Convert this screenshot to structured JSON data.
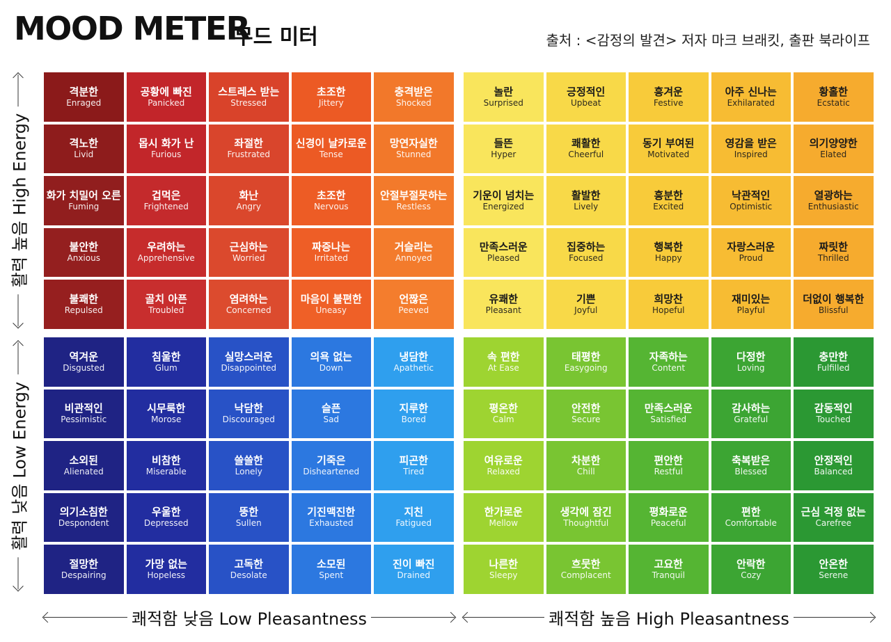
{
  "header": {
    "title": "MOOD METER",
    "subtitle": "무드 미터",
    "source": "출처 : <감정의 발견> 저자 마크 브래킷, 출판 북라이프"
  },
  "axes": {
    "high_energy": "활력 높음 High Energy",
    "low_energy": "활력 낮음 Low Energy",
    "low_pleasantness": "쾌적함 낮음 Low Pleasantness",
    "high_pleasantness": "쾌적함 높음 High Pleasantness"
  },
  "colors": {
    "red": [
      [
        "#8b1a1a",
        "#c2252a",
        "#d9432a",
        "#ec5a24",
        "#f2782a"
      ],
      [
        "#8e1c1c",
        "#c2262a",
        "#d9452c",
        "#ec5a24",
        "#f2782a"
      ],
      [
        "#911e1e",
        "#c42a2c",
        "#da472c",
        "#ed5c25",
        "#f37a2b"
      ],
      [
        "#941f1f",
        "#c62c2c",
        "#db492d",
        "#ee5e26",
        "#f37b2c"
      ],
      [
        "#961f1f",
        "#c82e2e",
        "#dc4b2e",
        "#ef6027",
        "#f47d2d"
      ]
    ],
    "yellow": [
      [
        "#f9e55c",
        "#f8d948",
        "#f8cb3a",
        "#f7bc33",
        "#f6ab2e"
      ],
      [
        "#f9e55c",
        "#f8d948",
        "#f8cb3a",
        "#f7bc33",
        "#f6ab2e"
      ],
      [
        "#f9e55c",
        "#f8d948",
        "#f8cb3a",
        "#f7bc33",
        "#f6ab2e"
      ],
      [
        "#f9e55c",
        "#f8d948",
        "#f8cb3a",
        "#f7bc33",
        "#f6ab2e"
      ],
      [
        "#f9e55c",
        "#f8d948",
        "#f8cb3a",
        "#f7bc33",
        "#f6ab2e"
      ]
    ],
    "blue": [
      [
        "#1f2384",
        "#222da0",
        "#2852c6",
        "#2c78e0",
        "#2f9fee"
      ],
      [
        "#1f2384",
        "#222da0",
        "#2852c6",
        "#2c78e0",
        "#2f9fee"
      ],
      [
        "#1f2384",
        "#222da0",
        "#2852c6",
        "#2c78e0",
        "#2f9fee"
      ],
      [
        "#1f2384",
        "#222da0",
        "#2852c6",
        "#2c78e0",
        "#2f9fee"
      ],
      [
        "#1f2384",
        "#222da0",
        "#2852c6",
        "#2c78e0",
        "#2f9fee"
      ]
    ],
    "green": [
      [
        "#9ed431",
        "#79c532",
        "#55b533",
        "#3ca533",
        "#2b9833"
      ],
      [
        "#9ed431",
        "#79c532",
        "#55b533",
        "#3ca533",
        "#2b9833"
      ],
      [
        "#9ed431",
        "#79c532",
        "#55b533",
        "#3ca533",
        "#2b9833"
      ],
      [
        "#9ed431",
        "#79c532",
        "#55b533",
        "#3ca533",
        "#2b9833"
      ],
      [
        "#9ed431",
        "#79c532",
        "#55b533",
        "#3ca533",
        "#2b9833"
      ]
    ]
  },
  "quadrants": {
    "red": [
      [
        {
          "ko": "격분한",
          "en": "Enraged"
        },
        {
          "ko": "공황에 빠진",
          "en": "Panicked"
        },
        {
          "ko": "스트레스 받는",
          "en": "Stressed"
        },
        {
          "ko": "초조한",
          "en": "Jittery"
        },
        {
          "ko": "충격받은",
          "en": "Shocked"
        }
      ],
      [
        {
          "ko": "격노한",
          "en": "Livid"
        },
        {
          "ko": "몹시 화가 난",
          "en": "Furious"
        },
        {
          "ko": "좌절한",
          "en": "Frustrated"
        },
        {
          "ko": "신경이 날카로운",
          "en": "Tense"
        },
        {
          "ko": "망연자실한",
          "en": "Stunned"
        }
      ],
      [
        {
          "ko": "화가 치밀어 오른",
          "en": "Fuming"
        },
        {
          "ko": "겁먹은",
          "en": "Frightened"
        },
        {
          "ko": "화난",
          "en": "Angry"
        },
        {
          "ko": "초조한",
          "en": "Nervous"
        },
        {
          "ko": "안절부절못하는",
          "en": "Restless"
        }
      ],
      [
        {
          "ko": "불안한",
          "en": "Anxious"
        },
        {
          "ko": "우려하는",
          "en": "Apprehensive"
        },
        {
          "ko": "근심하는",
          "en": "Worried"
        },
        {
          "ko": "짜증나는",
          "en": "Irritated"
        },
        {
          "ko": "거슬리는",
          "en": "Annoyed"
        }
      ],
      [
        {
          "ko": "불쾌한",
          "en": "Repulsed"
        },
        {
          "ko": "골치 아픈",
          "en": "Troubled"
        },
        {
          "ko": "염려하는",
          "en": "Concerned"
        },
        {
          "ko": "마음이 불편한",
          "en": "Uneasy"
        },
        {
          "ko": "언짢은",
          "en": "Peeved"
        }
      ]
    ],
    "yellow": [
      [
        {
          "ko": "놀란",
          "en": "Surprised"
        },
        {
          "ko": "긍정적인",
          "en": "Upbeat"
        },
        {
          "ko": "흥겨운",
          "en": "Festive"
        },
        {
          "ko": "아주 신나는",
          "en": "Exhilarated"
        },
        {
          "ko": "황홀한",
          "en": "Ecstatic"
        }
      ],
      [
        {
          "ko": "들뜬",
          "en": "Hyper"
        },
        {
          "ko": "쾌활한",
          "en": "Cheerful"
        },
        {
          "ko": "동기 부여된",
          "en": "Motivated"
        },
        {
          "ko": "영감을 받은",
          "en": "Inspired"
        },
        {
          "ko": "의기양양한",
          "en": "Elated"
        }
      ],
      [
        {
          "ko": "기운이 넘치는",
          "en": "Energized"
        },
        {
          "ko": "활발한",
          "en": "Lively"
        },
        {
          "ko": "흥분한",
          "en": "Excited"
        },
        {
          "ko": "낙관적인",
          "en": "Optimistic"
        },
        {
          "ko": "열광하는",
          "en": "Enthusiastic"
        }
      ],
      [
        {
          "ko": "만족스러운",
          "en": "Pleased"
        },
        {
          "ko": "집중하는",
          "en": "Focused"
        },
        {
          "ko": "행복한",
          "en": "Happy"
        },
        {
          "ko": "자랑스러운",
          "en": "Proud"
        },
        {
          "ko": "짜릿한",
          "en": "Thrilled"
        }
      ],
      [
        {
          "ko": "유쾌한",
          "en": "Pleasant"
        },
        {
          "ko": "기쁜",
          "en": "Joyful"
        },
        {
          "ko": "희망찬",
          "en": "Hopeful"
        },
        {
          "ko": "재미있는",
          "en": "Playful"
        },
        {
          "ko": "더없이 행복한",
          "en": "Blissful"
        }
      ]
    ],
    "blue": [
      [
        {
          "ko": "역겨운",
          "en": "Disgusted"
        },
        {
          "ko": "침울한",
          "en": "Glum"
        },
        {
          "ko": "실망스러운",
          "en": "Disappointed"
        },
        {
          "ko": "의욕 없는",
          "en": "Down"
        },
        {
          "ko": "냉담한",
          "en": "Apathetic"
        }
      ],
      [
        {
          "ko": "비관적인",
          "en": "Pessimistic"
        },
        {
          "ko": "시무룩한",
          "en": "Morose"
        },
        {
          "ko": "낙담한",
          "en": "Discouraged"
        },
        {
          "ko": "슬픈",
          "en": "Sad"
        },
        {
          "ko": "지루한",
          "en": "Bored"
        }
      ],
      [
        {
          "ko": "소외된",
          "en": "Alienated"
        },
        {
          "ko": "비참한",
          "en": "Miserable"
        },
        {
          "ko": "쓸쓸한",
          "en": "Lonely"
        },
        {
          "ko": "기죽은",
          "en": "Disheartened"
        },
        {
          "ko": "피곤한",
          "en": "Tired"
        }
      ],
      [
        {
          "ko": "의기소침한",
          "en": "Despondent"
        },
        {
          "ko": "우울한",
          "en": "Depressed"
        },
        {
          "ko": "뚱한",
          "en": "Sullen"
        },
        {
          "ko": "기진맥진한",
          "en": "Exhausted"
        },
        {
          "ko": "지친",
          "en": "Fatigued"
        }
      ],
      [
        {
          "ko": "절망한",
          "en": "Despairing"
        },
        {
          "ko": "가망 없는",
          "en": "Hopeless"
        },
        {
          "ko": "고독한",
          "en": "Desolate"
        },
        {
          "ko": "소모된",
          "en": "Spent"
        },
        {
          "ko": "진이 빠진",
          "en": "Drained"
        }
      ]
    ],
    "green": [
      [
        {
          "ko": "속 편한",
          "en": "At Ease"
        },
        {
          "ko": "태평한",
          "en": "Easygoing"
        },
        {
          "ko": "자족하는",
          "en": "Content"
        },
        {
          "ko": "다정한",
          "en": "Loving"
        },
        {
          "ko": "충만한",
          "en": "Fulfilled"
        }
      ],
      [
        {
          "ko": "평온한",
          "en": "Calm"
        },
        {
          "ko": "안전한",
          "en": "Secure"
        },
        {
          "ko": "만족스러운",
          "en": "Satisfied"
        },
        {
          "ko": "감사하는",
          "en": "Grateful"
        },
        {
          "ko": "감동적인",
          "en": "Touched"
        }
      ],
      [
        {
          "ko": "여유로운",
          "en": "Relaxed"
        },
        {
          "ko": "차분한",
          "en": "Chill"
        },
        {
          "ko": "편안한",
          "en": "Restful"
        },
        {
          "ko": "축복받은",
          "en": "Blessed"
        },
        {
          "ko": "안정적인",
          "en": "Balanced"
        }
      ],
      [
        {
          "ko": "한가로운",
          "en": "Mellow"
        },
        {
          "ko": "생각에 잠긴",
          "en": "Thoughtful"
        },
        {
          "ko": "평화로운",
          "en": "Peaceful"
        },
        {
          "ko": "편한",
          "en": "Comfortable"
        },
        {
          "ko": "근심 걱정 없는",
          "en": "Carefree"
        }
      ],
      [
        {
          "ko": "나른한",
          "en": "Sleepy"
        },
        {
          "ko": "흐뭇한",
          "en": "Complacent"
        },
        {
          "ko": "고요한",
          "en": "Tranquil"
        },
        {
          "ko": "안락한",
          "en": "Cozy"
        },
        {
          "ko": "안온한",
          "en": "Serene"
        }
      ]
    ]
  }
}
